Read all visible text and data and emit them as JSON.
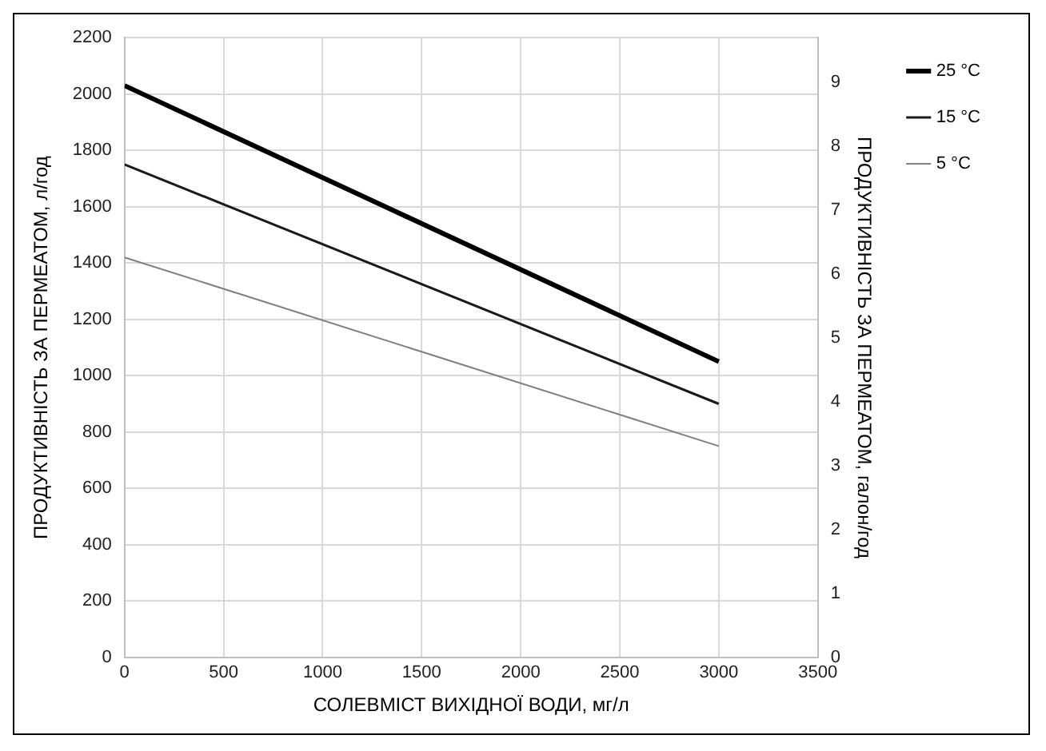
{
  "chart_data": {
    "type": "line",
    "xlabel": "СОЛЕВМІСТ ВИХІДНОЇ ВОДИ, мг/л",
    "ylabel": "ПРОДУКТИВНІСТЬ ЗА ПЕРМЕАТОМ, л/год",
    "y2label": "ПРОДУКТИВНІСТЬ ЗА ПЕРМЕАТОМ, галон/год",
    "x": [
      0,
      3000
    ],
    "series": [
      {
        "name": "25 °C",
        "color": "#000000",
        "values": [
          2030,
          1050
        ]
      },
      {
        "name": "15 °C",
        "color": "#1a1a1a",
        "values": [
          1750,
          900
        ]
      },
      {
        "name": "5 °C",
        "color": "#808080",
        "values": [
          1420,
          750
        ]
      }
    ],
    "xlim": [
      0,
      3500
    ],
    "xticks": [
      0,
      500,
      1000,
      1500,
      2000,
      2500,
      3000,
      3500
    ],
    "ylim": [
      0,
      2200
    ],
    "yticks": [
      0,
      200,
      400,
      600,
      800,
      1000,
      1200,
      1400,
      1600,
      1800,
      2000,
      2200
    ],
    "y2lim": [
      0,
      9.7
    ],
    "y2ticks": [
      0,
      1,
      2,
      3,
      4,
      5,
      6,
      7,
      8,
      9
    ],
    "grid": true,
    "legend": "right",
    "marker": "none",
    "line_style": "solid"
  }
}
